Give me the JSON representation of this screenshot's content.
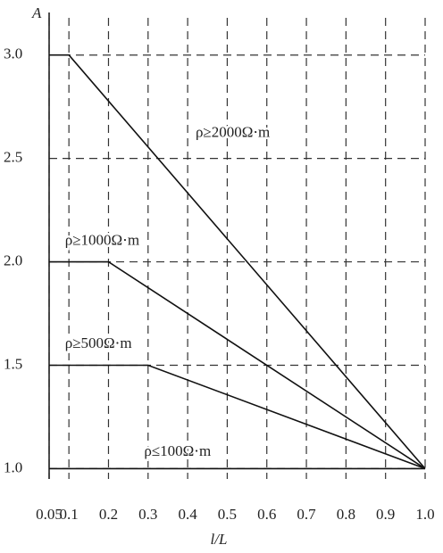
{
  "chart_data": {
    "type": "line",
    "y_label": "A",
    "x_label": "l/L",
    "xlim": [
      0.05,
      1.0
    ],
    "ylim": [
      0.95,
      3.18
    ],
    "xticks": [
      0.05,
      0.1,
      0.2,
      0.3,
      0.4,
      0.5,
      0.6,
      0.7,
      0.8,
      0.9,
      {
        "value": 1.0,
        "label": "1.0"
      }
    ],
    "yticks": [
      {
        "value": 1.0,
        "label": "1.0"
      },
      1.5,
      {
        "value": 2.0,
        "label": "2.0"
      },
      2.5,
      {
        "value": 3.0,
        "label": "3.0"
      }
    ],
    "grid": true,
    "series": [
      {
        "name": "ρ≥2000Ω·m",
        "color": "#111111",
        "x": [
          0.05,
          0.1,
          1.0
        ],
        "values": [
          3.0,
          3.0,
          1.0
        ]
      },
      {
        "name": "ρ≥1000Ω·m",
        "color": "#111111",
        "x": [
          0.05,
          0.2,
          1.0
        ],
        "values": [
          2.0,
          2.0,
          1.0
        ]
      },
      {
        "name": "ρ≥500Ω·m",
        "color": "#111111",
        "x": [
          0.05,
          0.3,
          1.0
        ],
        "values": [
          1.5,
          1.5,
          1.0
        ]
      },
      {
        "name": "ρ≤100Ω·m",
        "color": "#111111",
        "x": [
          0.05,
          1.0
        ],
        "values": [
          1.0,
          1.0
        ]
      }
    ]
  }
}
